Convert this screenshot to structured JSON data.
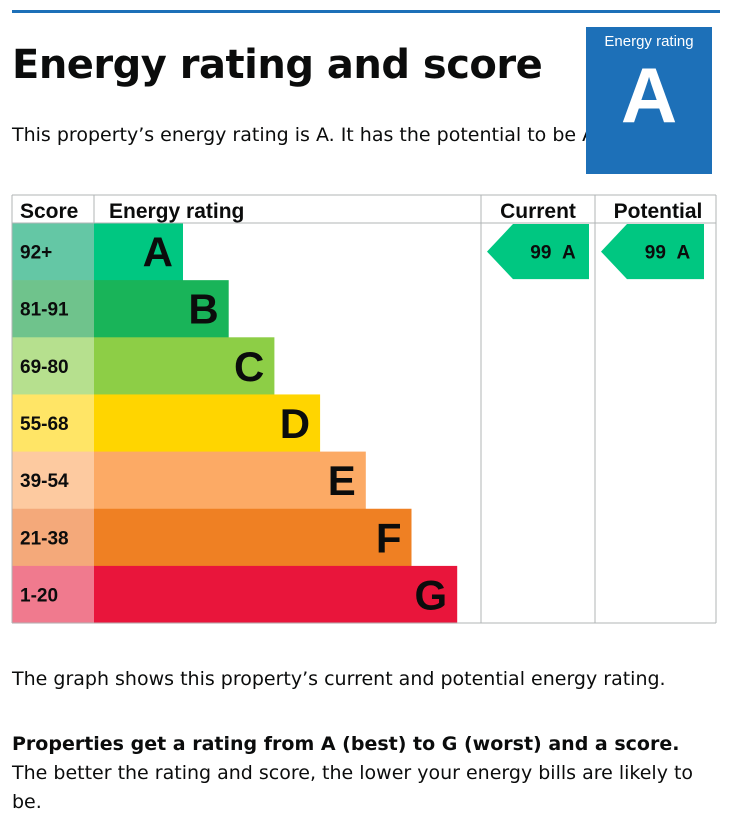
{
  "header": {
    "title": "Energy rating and score",
    "description": "This property’s energy rating is A. It has the potential to be A."
  },
  "badge": {
    "label": "Energy rating",
    "rating": "A",
    "color": "#1d70b8"
  },
  "chart_data": {
    "type": "table",
    "columns": [
      "Score",
      "Energy rating",
      "Current",
      "Potential"
    ],
    "bands": [
      {
        "letter": "A",
        "range": "92+",
        "color": "#00c781",
        "score_color": "#64c7a5"
      },
      {
        "letter": "B",
        "range": "81-91",
        "color": "#19b459",
        "score_color": "#6fc38c"
      },
      {
        "letter": "C",
        "range": "69-80",
        "color": "#8dce46",
        "score_color": "#b6e08e"
      },
      {
        "letter": "D",
        "range": "55-68",
        "color": "#ffd500",
        "score_color": "#ffe566"
      },
      {
        "letter": "E",
        "range": "39-54",
        "color": "#fcaa65",
        "score_color": "#fdcaa0"
      },
      {
        "letter": "F",
        "range": "21-38",
        "color": "#ef8023",
        "score_color": "#f4a97a"
      },
      {
        "letter": "G",
        "range": "1-20",
        "color": "#e9153b",
        "score_color": "#f07a8e"
      }
    ],
    "current": {
      "score": 99,
      "letter": "A",
      "label": "99 A"
    },
    "potential": {
      "score": 99,
      "letter": "A",
      "label": "99 A"
    }
  },
  "footer": {
    "graph_note": "The graph shows this property’s current and potential energy rating.",
    "bold_text": "Properties get a rating from A (best) to G (worst) and a score.",
    "rest_text": " The better the rating and score, the lower your energy bills are likely to be."
  }
}
